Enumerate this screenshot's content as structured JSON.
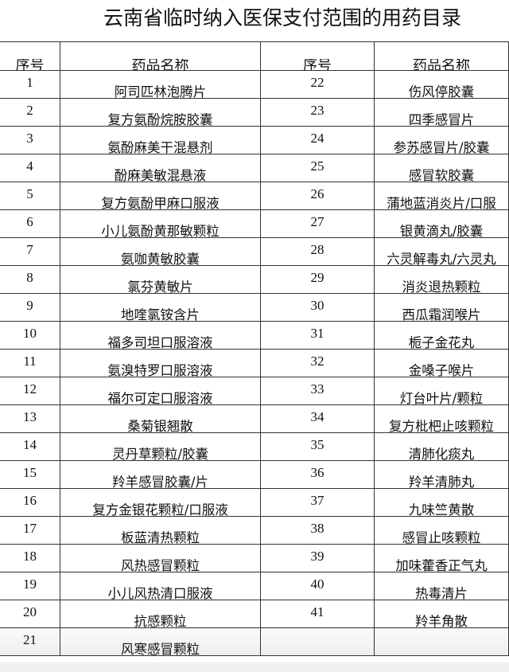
{
  "title": "云南省临时纳入医保支付范围的用药目录",
  "headers": {
    "no": "序号",
    "name": "药品名称"
  },
  "rows": [
    {
      "left_no": "1",
      "left_name": "阿司匹林泡腾片",
      "right_no": "22",
      "right_name": "伤风停胶囊"
    },
    {
      "left_no": "2",
      "left_name": "复方氨酚烷胺胶囊",
      "right_no": "23",
      "right_name": "四季感冒片"
    },
    {
      "left_no": "3",
      "left_name": "氨酚麻美干混悬剂",
      "right_no": "24",
      "right_name": "参苏感冒片/胶囊"
    },
    {
      "left_no": "4",
      "left_name": "酚麻美敏混悬液",
      "right_no": "25",
      "right_name": "感冒软胶囊"
    },
    {
      "left_no": "5",
      "left_name": "复方氨酚甲麻口服液",
      "right_no": "26",
      "right_name": "蒲地蓝消炎片/口服"
    },
    {
      "left_no": "6",
      "left_name": "小儿氨酚黄那敏颗粒",
      "right_no": "27",
      "right_name": "银黄滴丸/胶囊"
    },
    {
      "left_no": "7",
      "left_name": "氨咖黄敏胶囊",
      "right_no": "28",
      "right_name": "六灵解毒丸/六灵丸"
    },
    {
      "left_no": "8",
      "left_name": "氯芬黄敏片",
      "right_no": "29",
      "right_name": "消炎退热颗粒"
    },
    {
      "left_no": "9",
      "left_name": "地喹氯铵含片",
      "right_no": "30",
      "right_name": "西瓜霜润喉片"
    },
    {
      "left_no": "10",
      "left_name": "福多司坦口服溶液",
      "right_no": "31",
      "right_name": "栀子金花丸"
    },
    {
      "left_no": "11",
      "left_name": "氨溴特罗口服溶液",
      "right_no": "32",
      "right_name": "金嗓子喉片"
    },
    {
      "left_no": "12",
      "left_name": "福尔可定口服溶液",
      "right_no": "33",
      "right_name": "灯台叶片/颗粒"
    },
    {
      "left_no": "13",
      "left_name": "桑菊银翘散",
      "right_no": "34",
      "right_name": "复方枇杷止咳颗粒"
    },
    {
      "left_no": "14",
      "left_name": "灵丹草颗粒/胶囊",
      "right_no": "35",
      "right_name": "清肺化痰丸"
    },
    {
      "left_no": "15",
      "left_name": "羚羊感冒胶囊/片",
      "right_no": "36",
      "right_name": "羚羊清肺丸"
    },
    {
      "left_no": "16",
      "left_name": "复方金银花颗粒/口服液",
      "right_no": "37",
      "right_name": "九味竺黄散"
    },
    {
      "left_no": "17",
      "left_name": "板蓝清热颗粒",
      "right_no": "38",
      "right_name": "感冒止咳颗粒"
    },
    {
      "left_no": "18",
      "left_name": "风热感冒颗粒",
      "right_no": "39",
      "right_name": "加味藿香正气丸"
    },
    {
      "left_no": "19",
      "left_name": "小儿风热清口服液",
      "right_no": "40",
      "right_name": "热毒清片"
    },
    {
      "left_no": "20",
      "left_name": "抗感颗粒",
      "right_no": "41",
      "right_name": "羚羊角散"
    },
    {
      "left_no": "21",
      "left_name": "风寒感冒颗粒",
      "right_no": "",
      "right_name": ""
    }
  ]
}
